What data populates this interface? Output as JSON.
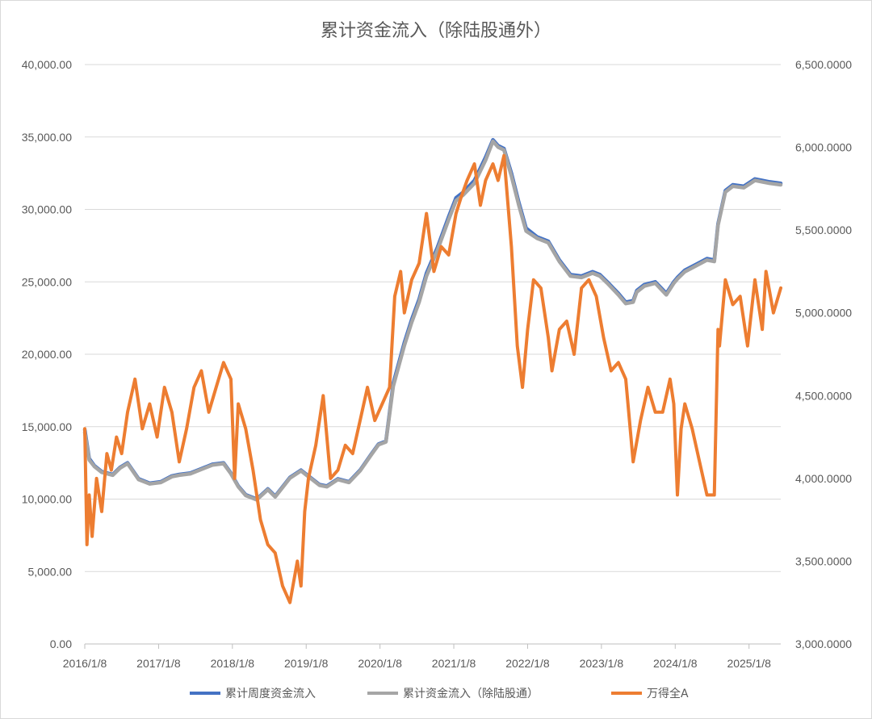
{
  "chart_data": {
    "type": "line",
    "title": "累计资金流入（除陆股通外）",
    "x_ticks": [
      "2016/1/8",
      "2017/1/8",
      "2018/1/8",
      "2019/1/8",
      "2020/1/8",
      "2021/1/8",
      "2022/1/8",
      "2023/1/8",
      "2024/1/8",
      "2025/1/8"
    ],
    "xlim": [
      2016.02,
      2025.45
    ],
    "y_left": {
      "ticks": [
        "0.00",
        "5,000.00",
        "10,000.00",
        "15,000.00",
        "20,000.00",
        "25,000.00",
        "30,000.00",
        "35,000.00",
        "40,000.00"
      ],
      "lim": [
        0,
        40000
      ]
    },
    "y_right": {
      "ticks": [
        "3,000.0000",
        "3,500.0000",
        "4,000.0000",
        "4,500.0000",
        "5,000.0000",
        "5,500.0000",
        "6,000.0000",
        "6,500.0000"
      ],
      "lim": [
        3000,
        6500
      ]
    },
    "grid": true,
    "legend_position": "bottom",
    "series": [
      {
        "name": "累计周度资金流入",
        "axis": "left",
        "color": "#4472c4",
        "x": [
          2016.02,
          2016.08,
          2016.15,
          2016.25,
          2016.4,
          2016.5,
          2016.6,
          2016.75,
          2016.9,
          2017.05,
          2017.2,
          2017.3,
          2017.45,
          2017.6,
          2017.75,
          2017.9,
          2018.0,
          2018.1,
          2018.2,
          2018.35,
          2018.5,
          2018.6,
          2018.8,
          2018.95,
          2019.05,
          2019.2,
          2019.3,
          2019.45,
          2019.6,
          2019.75,
          2019.9,
          2020.0,
          2020.1,
          2020.2,
          2020.35,
          2020.45,
          2020.55,
          2020.65,
          2020.8,
          2020.95,
          2021.05,
          2021.15,
          2021.3,
          2021.45,
          2021.55,
          2021.62,
          2021.7,
          2021.8,
          2021.9,
          2022.0,
          2022.15,
          2022.3,
          2022.45,
          2022.6,
          2022.75,
          2022.9,
          2023.0,
          2023.1,
          2023.25,
          2023.35,
          2023.45,
          2023.5,
          2023.6,
          2023.75,
          2023.9,
          2024.0,
          2024.05,
          2024.15,
          2024.3,
          2024.45,
          2024.55,
          2024.6,
          2024.7,
          2024.8,
          2024.95,
          2025.1,
          2025.2,
          2025.3,
          2025.45
        ],
        "y": [
          14800,
          12800,
          12300,
          11900,
          11700,
          12200,
          12500,
          11400,
          11100,
          11200,
          11600,
          11700,
          11800,
          12100,
          12400,
          12500,
          11800,
          10900,
          10300,
          10000,
          10700,
          10200,
          11500,
          12000,
          11600,
          11000,
          10900,
          11400,
          11200,
          12000,
          13100,
          13800,
          14000,
          18000,
          20800,
          22400,
          23800,
          25600,
          27400,
          29500,
          30800,
          31200,
          32000,
          33600,
          34800,
          34400,
          34200,
          32500,
          30500,
          28700,
          28100,
          27800,
          26500,
          25500,
          25400,
          25700,
          25500,
          25000,
          24200,
          23600,
          23700,
          24400,
          24800,
          25000,
          24200,
          25000,
          25300,
          25800,
          26200,
          26600,
          26500,
          29000,
          31300,
          31700,
          31600,
          32100,
          32000,
          31900,
          31800
        ]
      },
      {
        "name": "累计资金流入（除陆股通）",
        "axis": "left",
        "color": "#a5a5a5",
        "x": [
          2016.02,
          2016.08,
          2016.15,
          2016.25,
          2016.4,
          2016.5,
          2016.6,
          2016.75,
          2016.9,
          2017.05,
          2017.2,
          2017.3,
          2017.45,
          2017.6,
          2017.75,
          2017.9,
          2018.0,
          2018.1,
          2018.2,
          2018.35,
          2018.5,
          2018.6,
          2018.8,
          2018.95,
          2019.05,
          2019.2,
          2019.3,
          2019.45,
          2019.6,
          2019.75,
          2019.9,
          2020.0,
          2020.1,
          2020.2,
          2020.35,
          2020.45,
          2020.55,
          2020.65,
          2020.8,
          2020.95,
          2021.05,
          2021.15,
          2021.3,
          2021.45,
          2021.55,
          2021.62,
          2021.7,
          2021.8,
          2021.9,
          2022.0,
          2022.15,
          2022.3,
          2022.45,
          2022.6,
          2022.75,
          2022.9,
          2023.0,
          2023.1,
          2023.25,
          2023.35,
          2023.45,
          2023.5,
          2023.6,
          2023.75,
          2023.9,
          2024.0,
          2024.05,
          2024.15,
          2024.3,
          2024.45,
          2024.55,
          2024.6,
          2024.7,
          2024.8,
          2024.95,
          2025.1,
          2025.2,
          2025.3,
          2025.45
        ],
        "y": [
          14600,
          12700,
          12250,
          11850,
          11650,
          12150,
          12450,
          11350,
          11050,
          11150,
          11550,
          11650,
          11750,
          12050,
          12350,
          12450,
          11750,
          10850,
          10250,
          9950,
          10650,
          10150,
          11450,
          11950,
          11550,
          10950,
          10850,
          11350,
          11150,
          11950,
          13050,
          13750,
          13950,
          17800,
          20600,
          22200,
          23600,
          25400,
          27200,
          29300,
          30600,
          31000,
          31800,
          33400,
          34700,
          34300,
          34100,
          32300,
          30300,
          28500,
          28000,
          27700,
          26400,
          25400,
          25300,
          25600,
          25400,
          24900,
          24100,
          23500,
          23600,
          24300,
          24700,
          24900,
          24100,
          24900,
          25200,
          25700,
          26100,
          26500,
          26400,
          28900,
          31200,
          31600,
          31500,
          32000,
          31900,
          31800,
          31700
        ]
      },
      {
        "name": "万得全A",
        "axis": "right",
        "color": "#ed7d31",
        "x": [
          2016.02,
          2016.05,
          2016.08,
          2016.12,
          2016.18,
          2016.25,
          2016.32,
          2016.38,
          2016.45,
          2016.52,
          2016.6,
          2016.7,
          2016.8,
          2016.9,
          2017.0,
          2017.1,
          2017.2,
          2017.3,
          2017.4,
          2017.5,
          2017.6,
          2017.7,
          2017.8,
          2017.9,
          2018.0,
          2018.05,
          2018.1,
          2018.2,
          2018.3,
          2018.4,
          2018.5,
          2018.6,
          2018.7,
          2018.8,
          2018.9,
          2018.95,
          2019.0,
          2019.05,
          2019.15,
          2019.25,
          2019.35,
          2019.45,
          2019.55,
          2019.65,
          2019.75,
          2019.85,
          2019.95,
          2020.05,
          2020.15,
          2020.22,
          2020.3,
          2020.35,
          2020.45,
          2020.55,
          2020.65,
          2020.75,
          2020.85,
          2020.95,
          2021.05,
          2021.12,
          2021.2,
          2021.3,
          2021.38,
          2021.45,
          2021.55,
          2021.62,
          2021.7,
          2021.8,
          2021.88,
          2021.95,
          2022.02,
          2022.1,
          2022.2,
          2022.3,
          2022.35,
          2022.45,
          2022.55,
          2022.65,
          2022.75,
          2022.85,
          2022.95,
          2023.05,
          2023.15,
          2023.25,
          2023.35,
          2023.45,
          2023.55,
          2023.65,
          2023.75,
          2023.85,
          2023.95,
          2024.0,
          2024.05,
          2024.1,
          2024.15,
          2024.25,
          2024.35,
          2024.45,
          2024.55,
          2024.6,
          2024.62,
          2024.7,
          2024.8,
          2024.9,
          2025.0,
          2025.1,
          2025.2,
          2025.25,
          2025.35,
          2025.45
        ],
        "y": [
          4300,
          3600,
          3900,
          3650,
          4000,
          3800,
          4150,
          4050,
          4250,
          4150,
          4400,
          4600,
          4300,
          4450,
          4250,
          4550,
          4400,
          4100,
          4300,
          4550,
          4650,
          4400,
          4550,
          4700,
          4600,
          4000,
          4450,
          4300,
          4050,
          3750,
          3600,
          3550,
          3350,
          3250,
          3500,
          3350,
          3800,
          4000,
          4200,
          4500,
          4000,
          4050,
          4200,
          4150,
          4350,
          4550,
          4350,
          4450,
          4550,
          5100,
          5250,
          5000,
          5200,
          5300,
          5600,
          5250,
          5400,
          5350,
          5600,
          5700,
          5800,
          5900,
          5650,
          5800,
          5900,
          5800,
          5950,
          5400,
          4800,
          4550,
          4900,
          5200,
          5150,
          4850,
          4650,
          4900,
          4950,
          4750,
          5150,
          5200,
          5100,
          4850,
          4650,
          4700,
          4600,
          4100,
          4350,
          4550,
          4400,
          4400,
          4600,
          4450,
          3900,
          4300,
          4450,
          4300,
          4100,
          3900,
          3900,
          4900,
          4800,
          5200,
          5050,
          5100,
          4800,
          5200,
          4900,
          5250,
          5000,
          5150
        ]
      }
    ]
  }
}
